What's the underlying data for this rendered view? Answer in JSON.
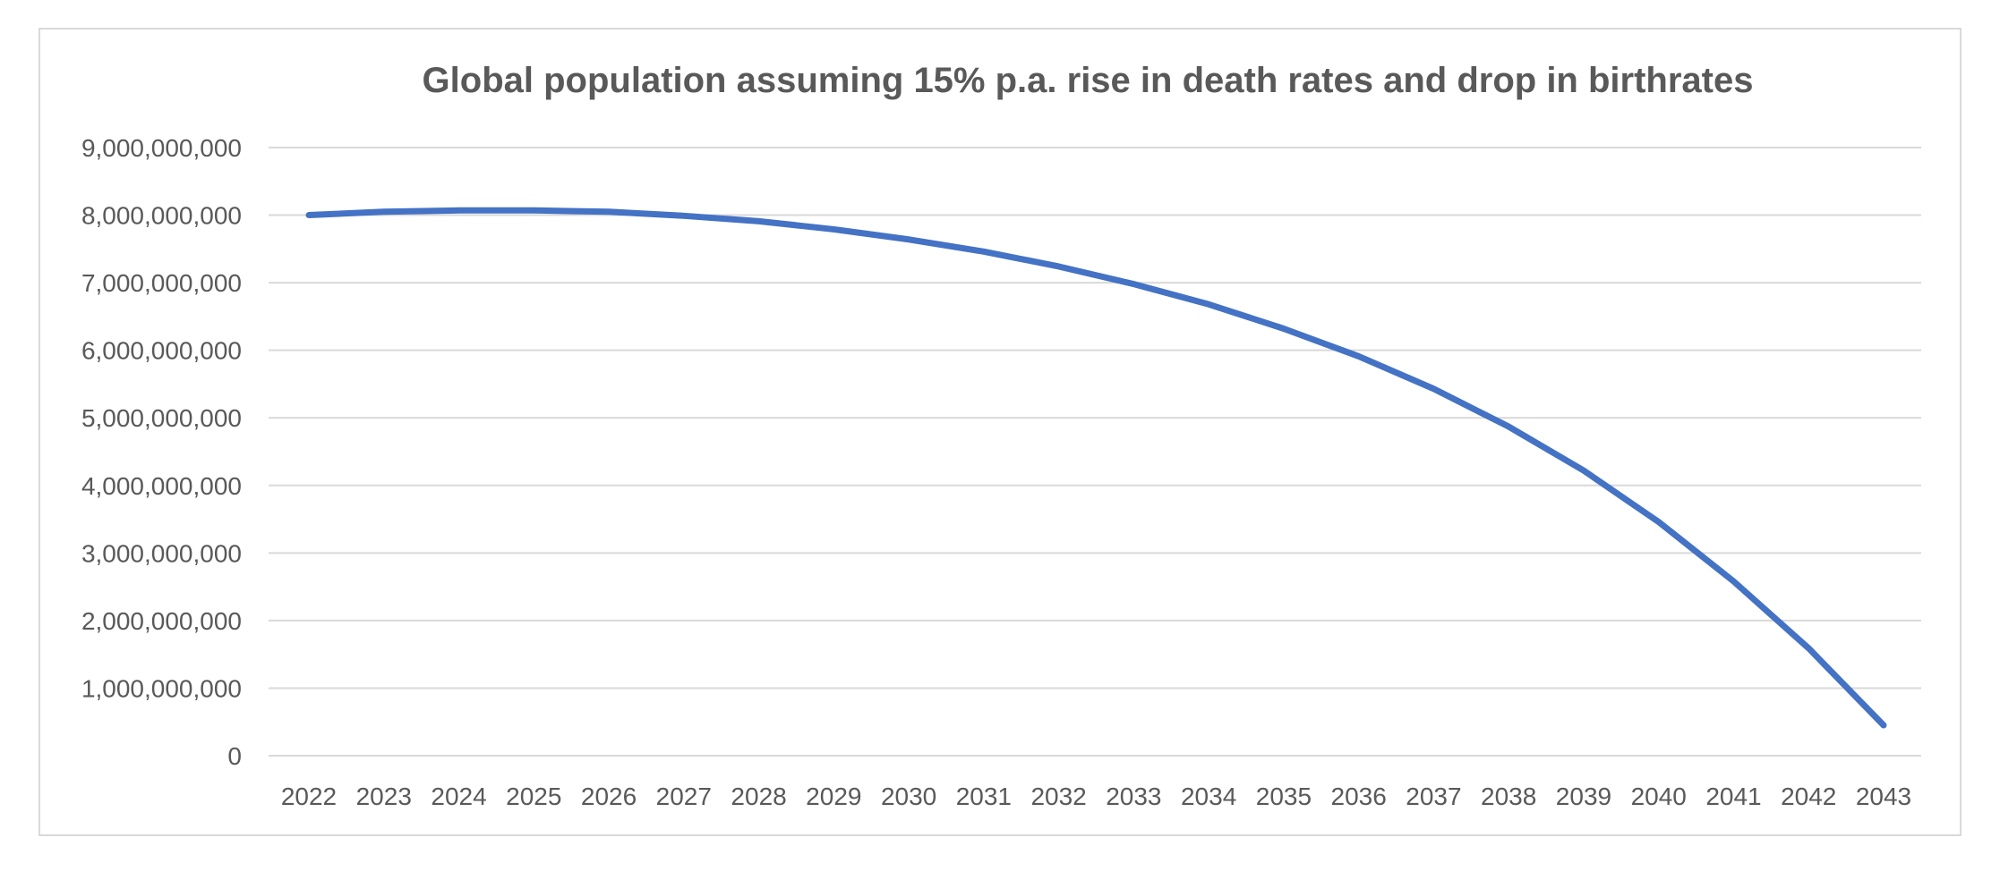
{
  "chart_data": {
    "type": "line",
    "title": "Global population assuming 15% p.a. rise in death rates and drop in birthrates",
    "xlabel": "",
    "ylabel": "",
    "categories": [
      "2022",
      "2023",
      "2024",
      "2025",
      "2026",
      "2027",
      "2028",
      "2029",
      "2030",
      "2031",
      "2032",
      "2033",
      "2034",
      "2035",
      "2036",
      "2037",
      "2038",
      "2039",
      "2040",
      "2041",
      "2042",
      "2043"
    ],
    "series": [
      {
        "values": [
          8000000000,
          8050000000,
          8070000000,
          8070000000,
          8050000000,
          7990000000,
          7910000000,
          7790000000,
          7640000000,
          7460000000,
          7240000000,
          6980000000,
          6680000000,
          6320000000,
          5910000000,
          5430000000,
          4870000000,
          4220000000,
          3460000000,
          2580000000,
          1590000000,
          450000000
        ]
      }
    ],
    "y_ticks": [
      "0",
      "1,000,000,000",
      "2,000,000,000",
      "3,000,000,000",
      "4,000,000,000",
      "5,000,000,000",
      "6,000,000,000",
      "7,000,000,000",
      "8,000,000,000",
      "9,000,000,000"
    ],
    "ylim": [
      0,
      9000000000
    ],
    "grid": "horizontal",
    "legend": "none",
    "colors": {
      "line": "#4472c4",
      "grid": "#d9d9d9",
      "text": "#595959",
      "border": "#d9d9d9"
    }
  }
}
